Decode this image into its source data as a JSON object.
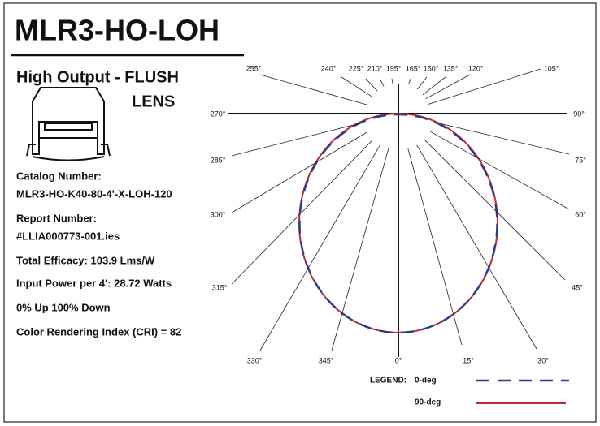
{
  "header": {
    "title": "MLR3-HO-LOH",
    "subtitle": [
      "High Output - FLUSH",
      "LENS"
    ]
  },
  "info": [
    "Catalog Number:",
    "MLR3-HO-K40-80-4'-X-LOH-120",
    "Report Number:",
    "#LLIA000773-001.ies",
    "Total Efficacy:  103.9 Lms/W",
    "Input Power per 4':  28.72 Watts",
    "0% Up    100% Down",
    "Color Rendering Index (CRI) = 82"
  ],
  "diagram": {
    "angle_labels": [
      "0°",
      "15°",
      "30°",
      "45°",
      "60°",
      "75°",
      "90°",
      "105°",
      "120°",
      "135°",
      "150°",
      "165°",
      "195°",
      "210°",
      "225°",
      "240°",
      "255°",
      "270°",
      "285°",
      "300°",
      "315°",
      "330°",
      "345°"
    ],
    "legend": {
      "title": "LEGEND:",
      "items": [
        "0-deg",
        "90-deg"
      ]
    }
  }
}
